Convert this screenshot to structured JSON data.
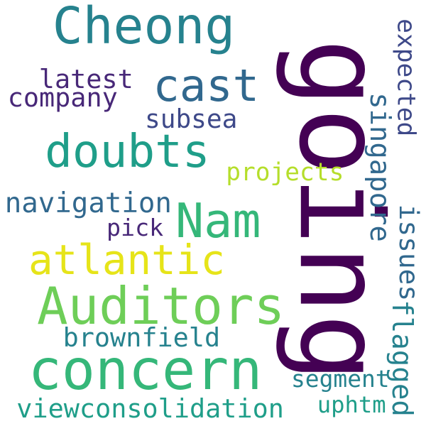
{
  "colors": {
    "background": "#ffffff",
    "dark_purple": "#440154",
    "indigo": "#482878",
    "blue": "#3e4989",
    "steel_blue": "#31688e",
    "teal_blue": "#26828e",
    "teal": "#1f9e89",
    "green": "#35b779",
    "light_green": "#6ece58",
    "yellow_green": "#b5de2b",
    "yellow": "#e6e419"
  },
  "words": {
    "going": {
      "text": "going",
      "color": "dark_purple",
      "orientation": "vertical"
    },
    "concern": {
      "text": "concern",
      "color": "green",
      "orientation": "horizontal"
    },
    "auditors": {
      "text": "Auditors",
      "color": "light_green",
      "orientation": "horizontal"
    },
    "cheong": {
      "text": "Cheong",
      "color": "teal_blue",
      "orientation": "horizontal"
    },
    "doubts": {
      "text": "doubts",
      "color": "teal",
      "orientation": "horizontal"
    },
    "cast": {
      "text": "cast",
      "color": "steel_blue",
      "orientation": "horizontal"
    },
    "nam": {
      "text": "Nam",
      "color": "green",
      "orientation": "horizontal"
    },
    "atlantic": {
      "text": "atlantic",
      "color": "yellow",
      "orientation": "horizontal"
    },
    "viewconsolidation": {
      "text": "viewconsolidation",
      "color": "teal",
      "orientation": "horizontal"
    },
    "brownfield": {
      "text": "brownfield",
      "color": "teal_blue",
      "orientation": "horizontal"
    },
    "navigation": {
      "text": "navigation",
      "color": "steel_blue",
      "orientation": "horizontal"
    },
    "company": {
      "text": "company",
      "color": "indigo",
      "orientation": "horizontal"
    },
    "latest": {
      "text": "latest",
      "color": "indigo",
      "orientation": "horizontal"
    },
    "subsea": {
      "text": "subsea",
      "color": "blue",
      "orientation": "horizontal"
    },
    "projects": {
      "text": "projects",
      "color": "yellow_green",
      "orientation": "horizontal"
    },
    "pick": {
      "text": "pick",
      "color": "indigo",
      "orientation": "horizontal"
    },
    "segment": {
      "text": "segment",
      "color": "teal_blue",
      "orientation": "horizontal"
    },
    "uphtm": {
      "text": "uphtm",
      "color": "teal",
      "orientation": "horizontal"
    },
    "expected": {
      "text": "expected",
      "color": "blue",
      "orientation": "vertical"
    },
    "singapore": {
      "text": "singapore",
      "color": "steel_blue",
      "orientation": "vertical"
    },
    "issues": {
      "text": "issues",
      "color": "steel_blue",
      "orientation": "vertical"
    },
    "flagged": {
      "text": "flagged",
      "color": "teal_blue",
      "orientation": "vertical"
    }
  }
}
